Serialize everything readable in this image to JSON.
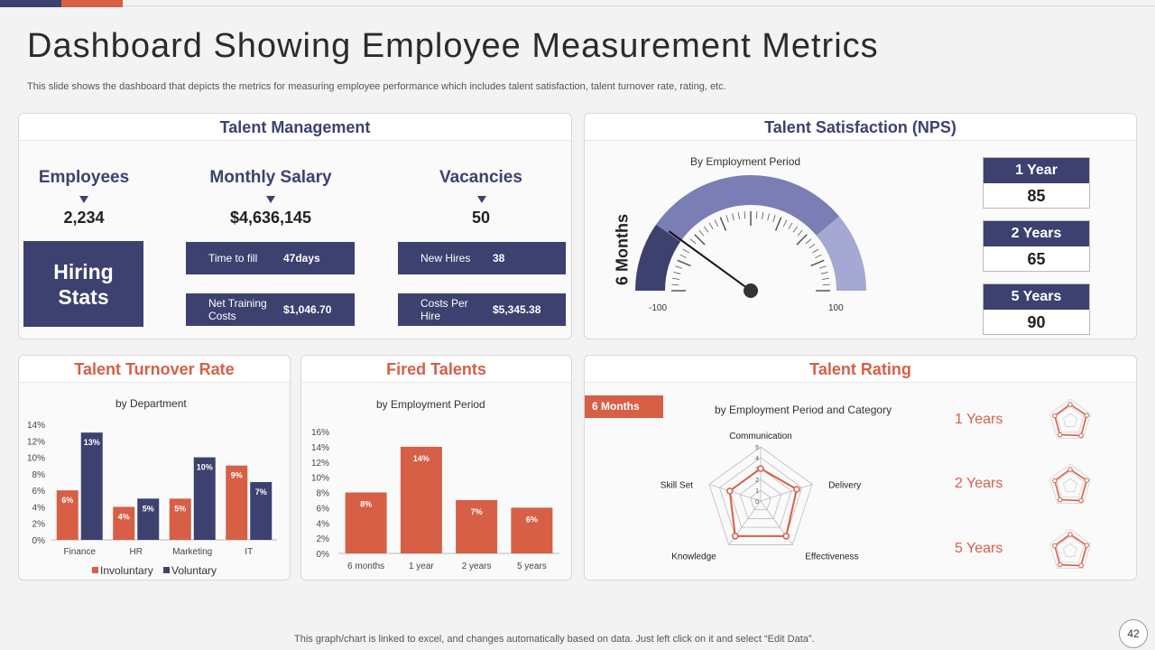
{
  "slide": {
    "title": "Dashboard Showing Employee Measurement Metrics",
    "subtitle": "This slide shows the dashboard that depicts the metrics for measuring employee performance which includes talent satisfaction, talent turnover rate,  rating, etc.",
    "footer": "This graph/chart is linked to excel,  and changes automatically based on data. Just left click on it and select “Edit Data”.",
    "page_number": "42",
    "colors": {
      "navy": "#3d4170",
      "orange": "#d65f46"
    }
  },
  "talent_management": {
    "title": "Talent Management",
    "employees": {
      "label": "Employees",
      "value": "2,234"
    },
    "salary": {
      "label": "Monthly Salary",
      "value": "$4,636,145"
    },
    "vacancies": {
      "label": "Vacancies",
      "value": "50"
    },
    "hiring_stats": "Hiring Stats",
    "stats": [
      {
        "label": "Time to fill",
        "value": "47days"
      },
      {
        "label": "Net Training Costs",
        "value": "$1,046.70"
      },
      {
        "label": "New Hires",
        "value": "38"
      },
      {
        "label": "Costs Per Hire",
        "value": "$5,345.38"
      }
    ]
  },
  "talent_satisfaction": {
    "title": "Talent Satisfaction (NPS)",
    "subtitle": "By Employment Period",
    "gauge_label": "6 Months",
    "min_label": "-100",
    "max_label": "100",
    "legend": [
      {
        "period": "1 Year",
        "value": "85"
      },
      {
        "period": "2 Years",
        "value": "65"
      },
      {
        "period": "5 Years",
        "value": "90"
      }
    ]
  },
  "turnover": {
    "title": "Talent Turnover Rate",
    "subtitle": "by Department"
  },
  "fired": {
    "title": "Fired Talents",
    "subtitle": "by Employment Period"
  },
  "rating": {
    "title": "Talent Rating",
    "badge": "6 Months",
    "subtitle": "by Employment Period and Category",
    "years": [
      "1 Years",
      "2 Years",
      "5 Years"
    ]
  },
  "chart_data": [
    {
      "type": "bar",
      "title": "Talent Turnover Rate",
      "subtitle": "by Department",
      "categories": [
        "Finance",
        "HR",
        "Marketing",
        "IT"
      ],
      "series": [
        {
          "name": "Involuntary",
          "color": "#d65f46",
          "values": [
            6,
            4,
            5,
            9
          ]
        },
        {
          "name": "Voluntary",
          "color": "#3d4170",
          "values": [
            13,
            5,
            10,
            7
          ]
        }
      ],
      "ylim": [
        0,
        14
      ],
      "yticks": [
        "0%",
        "2%",
        "4%",
        "6%",
        "8%",
        "10%",
        "12%",
        "14%"
      ]
    },
    {
      "type": "bar",
      "title": "Fired Talents",
      "subtitle": "by Employment Period",
      "categories": [
        "6 months",
        "1 year",
        "2 years",
        "5 years"
      ],
      "values": [
        8,
        14,
        7,
        6
      ],
      "color": "#d65f46",
      "ylim": [
        0,
        16
      ],
      "yticks": [
        "0%",
        "2%",
        "4%",
        "6%",
        "8%",
        "10%",
        "12%",
        "14%",
        "16%"
      ]
    },
    {
      "type": "gauge",
      "title": "Talent Satisfaction (NPS)",
      "label": "6 Months",
      "min": -100,
      "max": 100,
      "value": -60
    },
    {
      "type": "radar",
      "title": "Talent Rating",
      "series_name": "6 Months",
      "axes": [
        "Communication",
        "Delivery",
        "Effectiveness",
        "Knowledge",
        "Skill Set"
      ],
      "values": [
        3,
        3.5,
        4,
        4,
        3
      ],
      "rlim": [
        0,
        5
      ],
      "rticks": [
        "0",
        "1",
        "2",
        "3",
        "4",
        "5"
      ]
    }
  ]
}
